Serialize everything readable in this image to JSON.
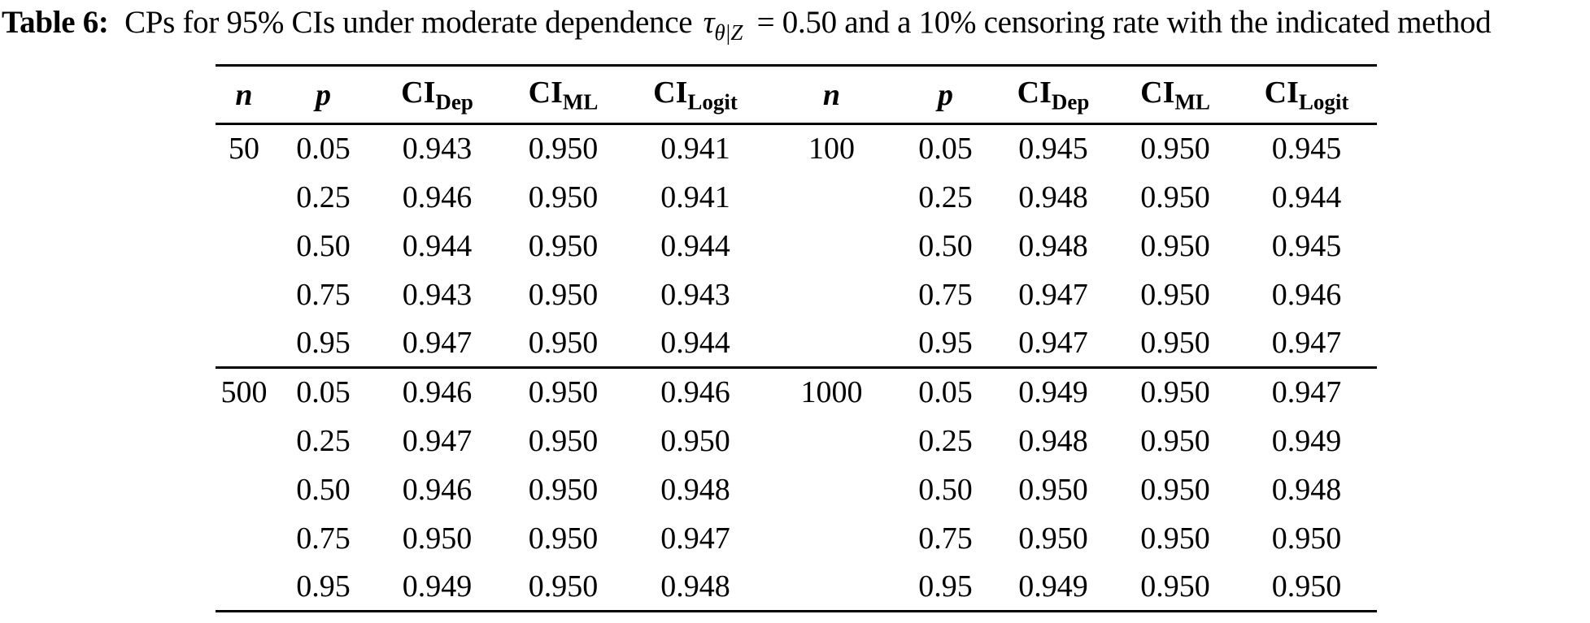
{
  "caption": {
    "label": "Table 6:",
    "before_math": "CPs for 95% CIs under moderate dependence",
    "math_symbol": "τ",
    "math_subscript": "θ|Z",
    "after_math": "= 0.50 and a 10% censoring rate with the indicated method"
  },
  "table": {
    "columns": [
      {
        "base": "n",
        "sub": "",
        "style": "italic"
      },
      {
        "base": "p",
        "sub": "",
        "style": "italic"
      },
      {
        "base": "CI",
        "sub": "Dep",
        "style": "roman"
      },
      {
        "base": "CI",
        "sub": "ML",
        "style": "roman"
      },
      {
        "base": "CI",
        "sub": "Logit",
        "style": "roman"
      },
      {
        "base": "n",
        "sub": "",
        "style": "italic"
      },
      {
        "base": "p",
        "sub": "",
        "style": "italic"
      },
      {
        "base": "CI",
        "sub": "Dep",
        "style": "roman"
      },
      {
        "base": "CI",
        "sub": "ML",
        "style": "roman"
      },
      {
        "base": "CI",
        "sub": "Logit",
        "style": "roman"
      }
    ],
    "sections": [
      {
        "rows": [
          {
            "cells": [
              "50",
              "0.05",
              "0.943",
              "0.950",
              "0.941",
              "100",
              "0.05",
              "0.945",
              "0.950",
              "0.945"
            ]
          },
          {
            "cells": [
              "",
              "0.25",
              "0.946",
              "0.950",
              "0.941",
              "",
              "0.25",
              "0.948",
              "0.950",
              "0.944"
            ]
          },
          {
            "cells": [
              "",
              "0.50",
              "0.944",
              "0.950",
              "0.944",
              "",
              "0.50",
              "0.948",
              "0.950",
              "0.945"
            ]
          },
          {
            "cells": [
              "",
              "0.75",
              "0.943",
              "0.950",
              "0.943",
              "",
              "0.75",
              "0.947",
              "0.950",
              "0.946"
            ]
          },
          {
            "cells": [
              "",
              "0.95",
              "0.947",
              "0.950",
              "0.944",
              "",
              "0.95",
              "0.947",
              "0.950",
              "0.947"
            ]
          }
        ]
      },
      {
        "rows": [
          {
            "cells": [
              "500",
              "0.05",
              "0.946",
              "0.950",
              "0.946",
              "1000",
              "0.05",
              "0.949",
              "0.950",
              "0.947"
            ]
          },
          {
            "cells": [
              "",
              "0.25",
              "0.947",
              "0.950",
              "0.950",
              "",
              "0.25",
              "0.948",
              "0.950",
              "0.949"
            ]
          },
          {
            "cells": [
              "",
              "0.50",
              "0.946",
              "0.950",
              "0.948",
              "",
              "0.50",
              "0.950",
              "0.950",
              "0.948"
            ]
          },
          {
            "cells": [
              "",
              "0.75",
              "0.950",
              "0.950",
              "0.947",
              "",
              "0.75",
              "0.950",
              "0.950",
              "0.950"
            ]
          },
          {
            "cells": [
              "",
              "0.95",
              "0.949",
              "0.950",
              "0.948",
              "",
              "0.95",
              "0.949",
              "0.950",
              "0.950"
            ]
          }
        ]
      }
    ]
  },
  "colors": {
    "text": "#000000",
    "background": "#ffffff",
    "rule": "#000000"
  }
}
